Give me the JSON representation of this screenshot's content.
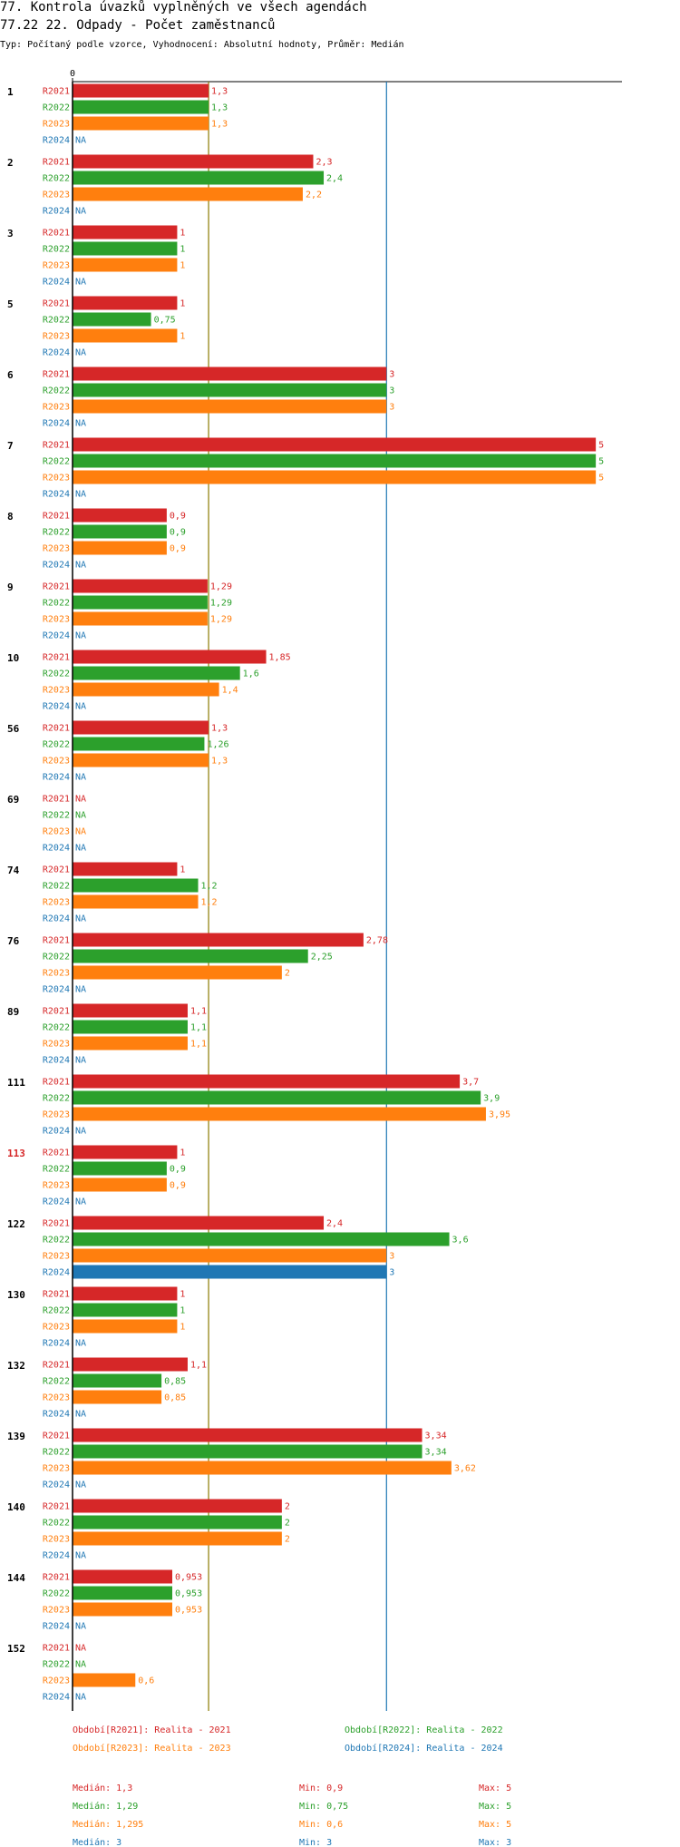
{
  "header": {
    "title": "77. Kontrola úvazků vyplněných ve všech agendách",
    "subtitle": "77.22 22. Odpady - Počet zaměstnanců",
    "description": "Typ: Počítaný podle vzorce, Vyhodnocení: Absolutní hodnoty, Průměr: Medián"
  },
  "chart_data": {
    "type": "bar",
    "orientation": "horizontal",
    "x_tick_labels": [
      "0"
    ],
    "xlim": [
      0,
      5.25
    ],
    "na_label": "NA",
    "series": [
      {
        "key": "R2021",
        "name": "R2021",
        "color": "#d62728"
      },
      {
        "key": "R2022",
        "name": "R2022",
        "color": "#2ca02c"
      },
      {
        "key": "R2023",
        "name": "R2023",
        "color": "#ff7f0e"
      },
      {
        "key": "R2024",
        "name": "R2024",
        "color": "#1f77b4"
      }
    ],
    "groups": [
      {
        "label": "1",
        "highlight": false,
        "values": [
          1.3,
          1.3,
          1.3,
          null
        ],
        "labels": [
          "1,3",
          "1,3",
          "1,3",
          "NA"
        ]
      },
      {
        "label": "2",
        "highlight": false,
        "values": [
          2.3,
          2.4,
          2.2,
          null
        ],
        "labels": [
          "2,3",
          "2,4",
          "2,2",
          "NA"
        ]
      },
      {
        "label": "3",
        "highlight": false,
        "values": [
          1,
          1,
          1,
          null
        ],
        "labels": [
          "1",
          "1",
          "1",
          "NA"
        ]
      },
      {
        "label": "5",
        "highlight": false,
        "values": [
          1,
          0.75,
          1,
          null
        ],
        "labels": [
          "1",
          "0,75",
          "1",
          "NA"
        ]
      },
      {
        "label": "6",
        "highlight": false,
        "values": [
          3,
          3,
          3,
          null
        ],
        "labels": [
          "3",
          "3",
          "3",
          "NA"
        ]
      },
      {
        "label": "7",
        "highlight": false,
        "values": [
          5,
          5,
          5,
          null
        ],
        "labels": [
          "5",
          "5",
          "5",
          "NA"
        ]
      },
      {
        "label": "8",
        "highlight": false,
        "values": [
          0.9,
          0.9,
          0.9,
          null
        ],
        "labels": [
          "0,9",
          "0,9",
          "0,9",
          "NA"
        ]
      },
      {
        "label": "9",
        "highlight": false,
        "values": [
          1.29,
          1.29,
          1.29,
          null
        ],
        "labels": [
          "1,29",
          "1,29",
          "1,29",
          "NA"
        ]
      },
      {
        "label": "10",
        "highlight": false,
        "values": [
          1.85,
          1.6,
          1.4,
          null
        ],
        "labels": [
          "1,85",
          "1,6",
          "1,4",
          "NA"
        ]
      },
      {
        "label": "56",
        "highlight": false,
        "values": [
          1.3,
          1.26,
          1.3,
          null
        ],
        "labels": [
          "1,3",
          "1,26",
          "1,3",
          "NA"
        ]
      },
      {
        "label": "69",
        "highlight": false,
        "values": [
          null,
          null,
          null,
          null
        ],
        "labels": [
          "NA",
          "NA",
          "NA",
          "NA"
        ]
      },
      {
        "label": "74",
        "highlight": false,
        "values": [
          1,
          1.2,
          1.2,
          null
        ],
        "labels": [
          "1",
          "1,2",
          "1,2",
          "NA"
        ]
      },
      {
        "label": "76",
        "highlight": false,
        "values": [
          2.78,
          2.25,
          2,
          null
        ],
        "labels": [
          "2,78",
          "2,25",
          "2",
          "NA"
        ]
      },
      {
        "label": "89",
        "highlight": false,
        "values": [
          1.1,
          1.1,
          1.1,
          null
        ],
        "labels": [
          "1,1",
          "1,1",
          "1,1",
          "NA"
        ]
      },
      {
        "label": "111",
        "highlight": false,
        "values": [
          3.7,
          3.9,
          3.95,
          null
        ],
        "labels": [
          "3,7",
          "3,9",
          "3,95",
          "NA"
        ]
      },
      {
        "label": "113",
        "highlight": true,
        "values": [
          1,
          0.9,
          0.9,
          null
        ],
        "labels": [
          "1",
          "0,9",
          "0,9",
          "NA"
        ]
      },
      {
        "label": "122",
        "highlight": false,
        "values": [
          2.4,
          3.6,
          3,
          3
        ],
        "labels": [
          "2,4",
          "3,6",
          "3",
          "3"
        ]
      },
      {
        "label": "130",
        "highlight": false,
        "values": [
          1,
          1,
          1,
          null
        ],
        "labels": [
          "1",
          "1",
          "1",
          "NA"
        ]
      },
      {
        "label": "132",
        "highlight": false,
        "values": [
          1.1,
          0.85,
          0.85,
          null
        ],
        "labels": [
          "1,1",
          "0,85",
          "0,85",
          "NA"
        ]
      },
      {
        "label": "139",
        "highlight": false,
        "values": [
          3.34,
          3.34,
          3.62,
          null
        ],
        "labels": [
          "3,34",
          "3,34",
          "3,62",
          "NA"
        ]
      },
      {
        "label": "140",
        "highlight": false,
        "values": [
          2,
          2,
          2,
          null
        ],
        "labels": [
          "2",
          "2",
          "2",
          "NA"
        ]
      },
      {
        "label": "144",
        "highlight": false,
        "values": [
          0.953,
          0.953,
          0.953,
          null
        ],
        "labels": [
          "0,953",
          "0,953",
          "0,953",
          "NA"
        ]
      },
      {
        "label": "152",
        "highlight": false,
        "values": [
          null,
          null,
          0.6,
          null
        ],
        "labels": [
          "NA",
          "NA",
          "0,6",
          "NA"
        ]
      }
    ],
    "reference_lines": [
      {
        "value": 1.3,
        "color": "#8b7a00"
      },
      {
        "value": 3,
        "color": "#1f77b4"
      }
    ],
    "legend": [
      {
        "text": "Období[R2021]: Realita - 2021",
        "color": "#d62728"
      },
      {
        "text": "Období[R2022]: Realita - 2022",
        "color": "#2ca02c"
      },
      {
        "text": "Období[R2023]: Realita - 2023",
        "color": "#ff7f0e"
      },
      {
        "text": "Období[R2024]: Realita - 2024",
        "color": "#1f77b4"
      }
    ],
    "stats": [
      {
        "median": "Medián: 1,3",
        "min": "Min: 0,9",
        "max": "Max: 5",
        "color": "#d62728"
      },
      {
        "median": "Medián: 1,29",
        "min": "Min: 0,75",
        "max": "Max: 5",
        "color": "#2ca02c"
      },
      {
        "median": "Medián: 1,295",
        "min": "Min: 0,6",
        "max": "Max: 5",
        "color": "#ff7f0e"
      },
      {
        "median": "Medián: 3",
        "min": "Min: 3",
        "max": "Max: 3",
        "color": "#1f77b4"
      }
    ],
    "highlight_color": "#d62728"
  }
}
